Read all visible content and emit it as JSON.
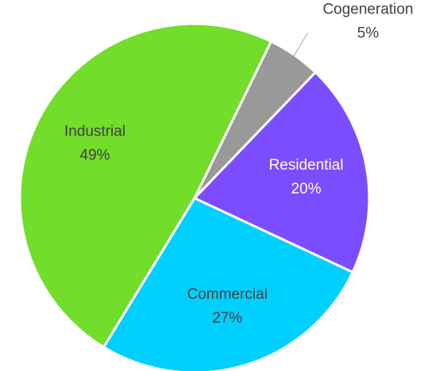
{
  "chart_data": {
    "type": "pie",
    "categories": [
      "Cogeneration",
      "Residential",
      "Commercial",
      "Industrial"
    ],
    "values": [
      5,
      20,
      27,
      49
    ],
    "value_labels": [
      "5%",
      "20%",
      "27%",
      "49%"
    ],
    "colors": [
      "#999999",
      "#7c4dff",
      "#00d0ff",
      "#72dd2a"
    ],
    "label_colors": [
      "#404040",
      "#ffffff",
      "#404040",
      "#404040"
    ]
  }
}
